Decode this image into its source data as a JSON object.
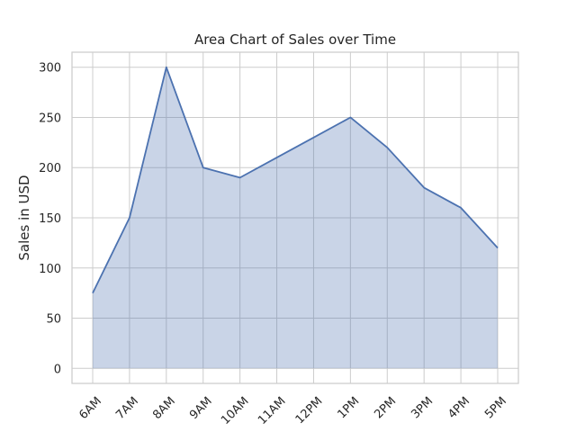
{
  "chart_data": {
    "type": "area",
    "title": "Area Chart of Sales over Time",
    "xlabel": "",
    "ylabel": "Sales in USD",
    "categories": [
      "6AM",
      "7AM",
      "8AM",
      "9AM",
      "10AM",
      "11AM",
      "12PM",
      "1PM",
      "2PM",
      "3PM",
      "4PM",
      "5PM"
    ],
    "values": [
      75,
      150,
      300,
      200,
      190,
      210,
      230,
      250,
      220,
      180,
      160,
      120
    ],
    "ylim": [
      -15,
      315
    ],
    "yticks": [
      0,
      50,
      100,
      150,
      200,
      250,
      300
    ],
    "grid": true,
    "line_color": "#4c72b0",
    "fill_color": "#4c72b0",
    "fill_opacity": 0.3
  }
}
